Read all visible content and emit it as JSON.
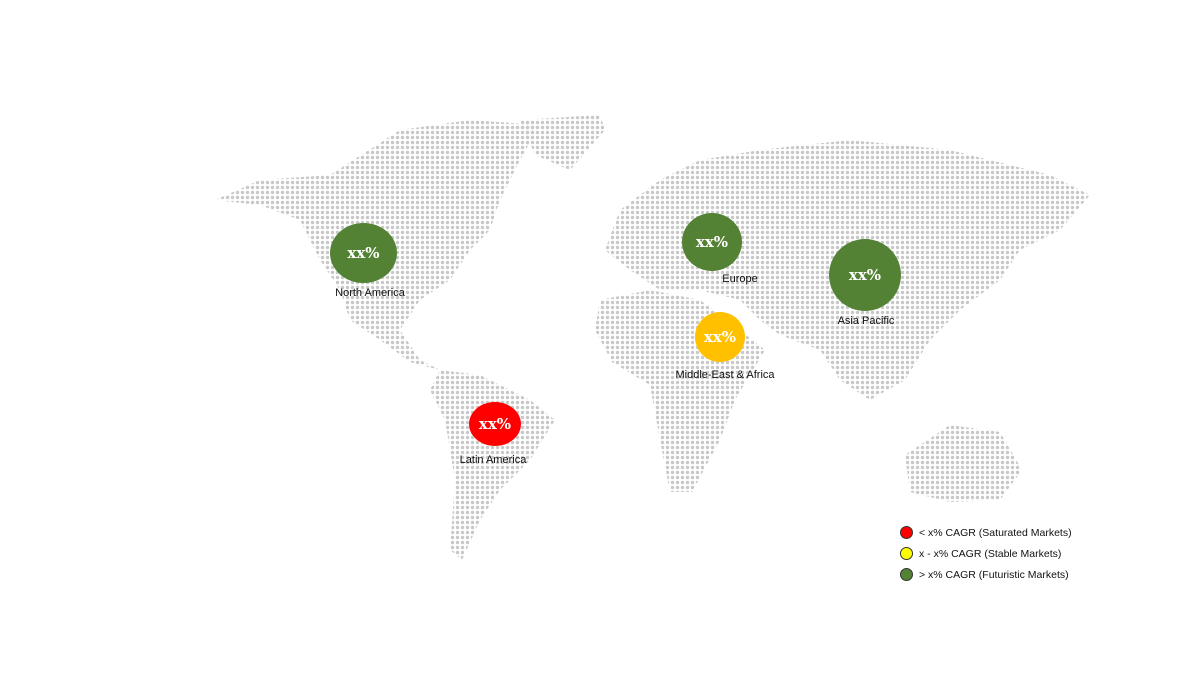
{
  "regions": [
    {
      "name": "North America",
      "value": "xx%",
      "color": "#548235",
      "category": "futuristic"
    },
    {
      "name": "Europe",
      "value": "xx%",
      "color": "#548235",
      "category": "futuristic"
    },
    {
      "name": "Asia Pacific",
      "value": "xx%",
      "color": "#548235",
      "category": "futuristic"
    },
    {
      "name": "Middle-East & Africa",
      "value": "xx%",
      "color": "#FFC000",
      "category": "stable"
    },
    {
      "name": "Latin America",
      "value": "xx%",
      "color": "#FF0000",
      "category": "saturated"
    }
  ],
  "legend": [
    {
      "label": "< x% CAGR (Saturated Markets)",
      "color": "#FF0000"
    },
    {
      "label": "x - x% CAGR (Stable Markets)",
      "color": "#FFFF00"
    },
    {
      "label": "> x% CAGR (Futuristic Markets)",
      "color": "#548235"
    }
  ],
  "map_dot_color": "#c8c8c8"
}
